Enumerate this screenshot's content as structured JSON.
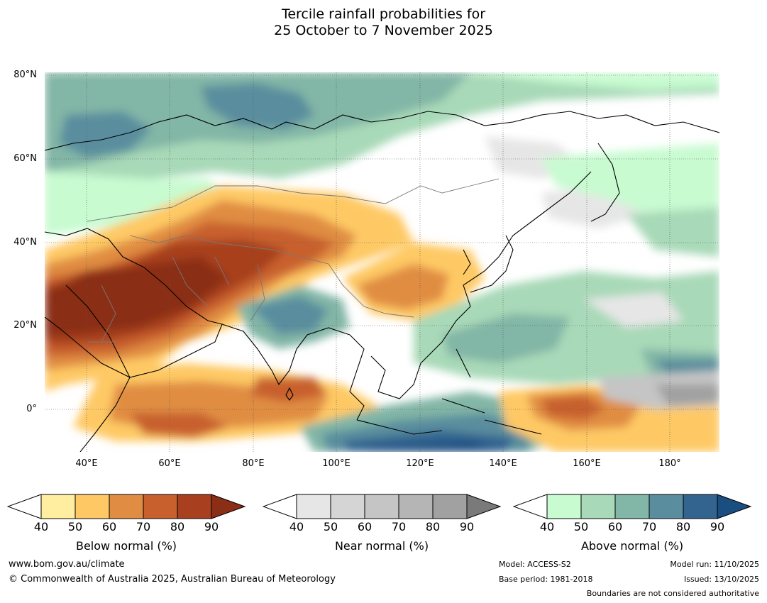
{
  "title": {
    "line1": "Tercile rainfall probabilities for",
    "line2": "25 October to 7 November 2025"
  },
  "map": {
    "lat_labels": [
      "80°N",
      "60°N",
      "40°N",
      "20°N",
      "0°"
    ],
    "lon_labels": [
      "40°E",
      "60°E",
      "80°E",
      "100°E",
      "120°E",
      "140°E",
      "160°E",
      "180°"
    ]
  },
  "legends": [
    {
      "label": "Below normal (%)",
      "ticks": [
        "40",
        "50",
        "60",
        "70",
        "80",
        "90"
      ],
      "colors": [
        "#ffffff",
        "#ffeda0",
        "#fec965",
        "#e08d43",
        "#c8602e",
        "#a8401f",
        "#8b2e16"
      ]
    },
    {
      "label": "Near normal (%)",
      "ticks": [
        "40",
        "50",
        "60",
        "70",
        "80",
        "90"
      ],
      "colors": [
        "#ffffff",
        "#e6e6e6",
        "#d5d5d5",
        "#c5c5c5",
        "#b5b5b5",
        "#a1a1a1",
        "#7a7a7a"
      ]
    },
    {
      "label": "Above normal (%)",
      "ticks": [
        "40",
        "50",
        "60",
        "70",
        "80",
        "90"
      ],
      "colors": [
        "#ffffff",
        "#c8fbd0",
        "#a8d9b8",
        "#82b6a6",
        "#5a8e9e",
        "#33648f",
        "#1a4d80"
      ]
    }
  ],
  "footer": {
    "website": "www.bom.gov.au/climate",
    "copyright": "© Commonwealth of Australia 2025, Australian Bureau of Meteorology",
    "model": "Model: ACCESS-S2",
    "base_period": "Base period: 1981-2018",
    "model_run": "Model run: 11/10/2025",
    "issued": "Issued: 13/10/2025",
    "disclaimer": "Boundaries are not considered authoritative"
  },
  "colors": {
    "below_dark": "#8b2e16",
    "below_mid": "#c8602e",
    "below_light": "#fec965",
    "below_pale": "#ffeda0",
    "near_light": "#e6e6e6",
    "near_mid": "#b5b5b5",
    "above_pale": "#c8fbd0",
    "above_light": "#a8d9b8",
    "above_mid": "#82b6a6",
    "above_dark": "#5a8e9e",
    "above_deep": "#33648f",
    "above_deepest": "#1a4d80"
  }
}
